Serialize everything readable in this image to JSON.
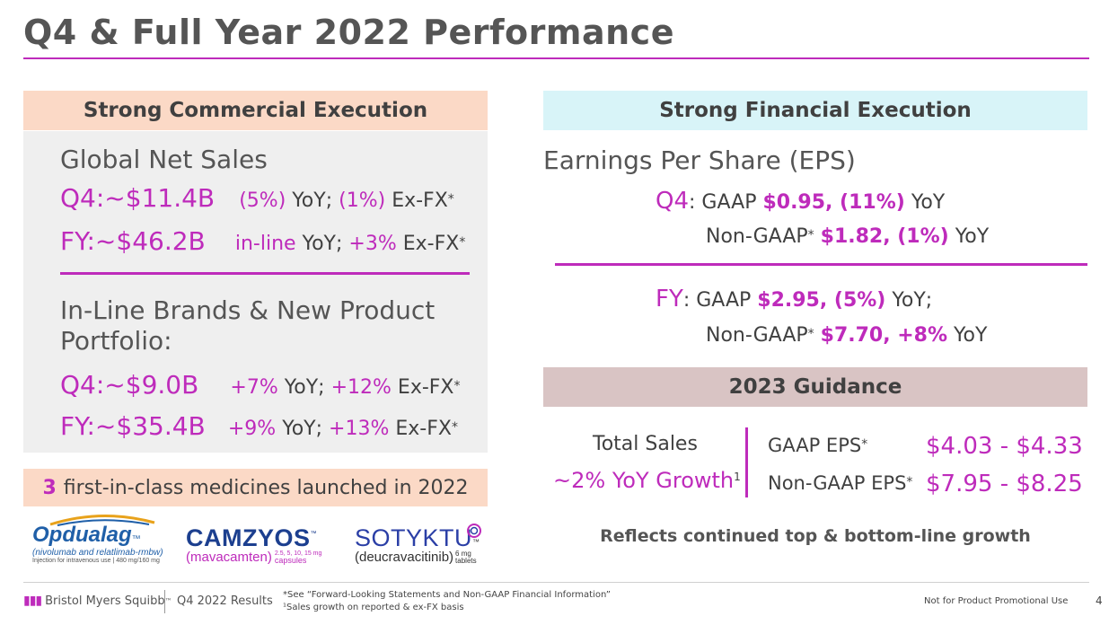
{
  "title": "Q4 & Full Year 2022 Performance",
  "commercial": {
    "header": "Strong Commercial Execution",
    "global_heading": "Global Net Sales",
    "global_q4_label": "Q4:~$11.4B",
    "global_q4_change": "(5%)",
    "global_q4_yoy": " YoY; ",
    "global_q4_exfx_val": "(1%)",
    "global_q4_exfx": " Ex-FX",
    "global_fy_label": "FY:~$46.2B",
    "global_fy_change": "in-line",
    "global_fy_yoy": " YoY; ",
    "global_fy_exfx_val": "+3%",
    "global_fy_exfx": " Ex-FX",
    "brands_heading_1": "In-Line Brands & New Product",
    "brands_heading_2": "Portfolio:",
    "brands_q4_label": "Q4:~$9.0B",
    "brands_q4_change": "+7%",
    "brands_q4_yoy": " YoY; ",
    "brands_q4_exfx_val": "+12%",
    "brands_q4_exfx": " Ex-FX",
    "brands_fy_label": "FY:~$35.4B",
    "brands_fy_change": "+9%",
    "brands_fy_yoy": " YoY; ",
    "brands_fy_exfx_val": "+13%",
    "brands_fy_exfx": " Ex-FX",
    "star": "*",
    "launch_count": "3",
    "launch_text": "first-in-class medicines launched in 2022"
  },
  "logos": {
    "opdualag": {
      "name": "Opdualag",
      "tm": "™",
      "generic": "(nivolumab and relatlimab-rmbw)",
      "detail": "Injection for intravenous use | 480 mg/160 mg"
    },
    "camzyos": {
      "name": "CAMZYOS",
      "tm": "™",
      "generic": "(mavacamten)",
      "dose": "2.5, 5, 10, 15 mg",
      "form": "capsules"
    },
    "sotyktu": {
      "name": "SOTYKTU",
      "tm": "™",
      "generic": "(deucravacitinib)",
      "dose": "6 mg",
      "form": "tablets"
    }
  },
  "financial": {
    "header": "Strong Financial Execution",
    "eps_heading": "Earnings Per Share (EPS)",
    "q4_label": "Q4",
    "colon": ":",
    "gaap": " GAAP ",
    "q4_gaap_val": "$0.95, (11%)",
    "yoy": " YoY",
    "non_gaap": "Non-GAAP",
    "q4_nongaap_val": "$1.82, (1%)",
    "fy_label": "FY",
    "fy_gaap_val": "$2.95, (5%)",
    "yoy_semi": " YoY;",
    "fy_nongaap_val": "$7.70, +8%",
    "star": "*"
  },
  "guidance": {
    "header": "2023 Guidance",
    "total_sales": "Total Sales",
    "growth": "~2% YoY Growth",
    "growth_footnote": "1",
    "gaap_eps_label": "GAAP EPS",
    "gaap_eps_range": "$4.03 - $4.33",
    "nongaap_eps_label": "Non-GAAP EPS",
    "nongaap_eps_range": "$7.95 - $8.25",
    "star": "*",
    "reflects": "Reflects continued top & bottom-line growth"
  },
  "footer": {
    "company": "Bristol Myers Squibb",
    "tm": "™",
    "deck": "Q4 2022 Results",
    "note1": "*See “Forward-Looking Statements and Non-GAAP Financial Information”",
    "note2": "¹Sales growth on reported & ex-FX basis",
    "disclaimer": "Not for Product Promotional Use",
    "page": "4"
  },
  "colors": {
    "accent": "#be2bbb",
    "commercial_header": "#fbd9c6",
    "financial_header": "#d8f4f8",
    "guidance_header": "#d9c4c4",
    "panel_bg": "#efefef"
  }
}
